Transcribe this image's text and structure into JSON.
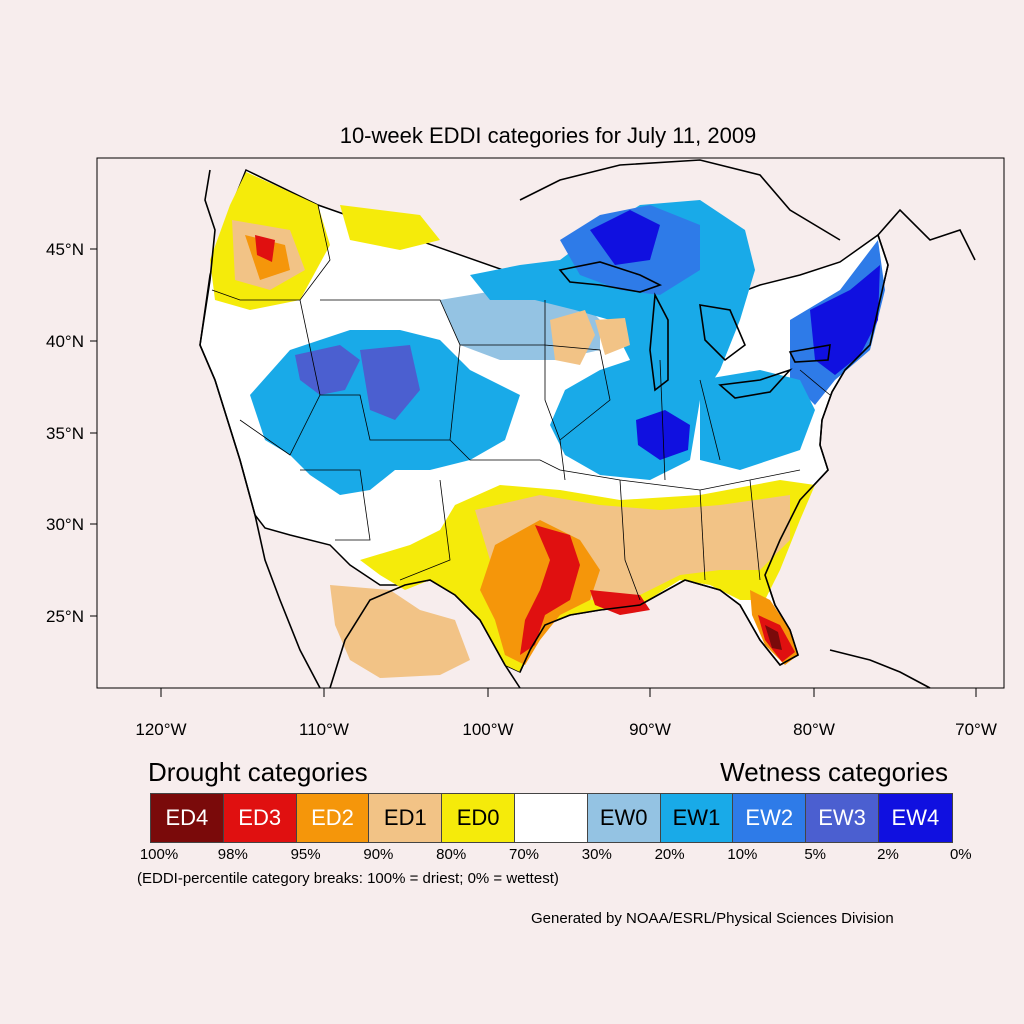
{
  "map": {
    "title": "10-week EDDI categories for July 11, 2009",
    "lat_labels": [
      "45°N",
      "40°N",
      "35°N",
      "30°N",
      "25°N"
    ],
    "lon_labels": [
      "120°W",
      "110°W",
      "100°W",
      "90°W",
      "80°W",
      "70°W"
    ]
  },
  "legend": {
    "drought_heading": "Drought categories",
    "wetness_heading": "Wetness categories",
    "categories": [
      {
        "label": "ED4",
        "color": "#7a0a0a",
        "text_color": "#ffffff"
      },
      {
        "label": "ED3",
        "color": "#e01010",
        "text_color": "#ffffff"
      },
      {
        "label": "ED2",
        "color": "#f5960a",
        "text_color": "#ffffff"
      },
      {
        "label": "ED1",
        "color": "#f2c386",
        "text_color": "#000000"
      },
      {
        "label": "ED0",
        "color": "#f5eb0a",
        "text_color": "#000000"
      },
      {
        "label": "",
        "color": "#ffffff",
        "text_color": "#000000"
      },
      {
        "label": "EW0",
        "color": "#94c3e3",
        "text_color": "#000000"
      },
      {
        "label": "EW1",
        "color": "#19aae8",
        "text_color": "#000000"
      },
      {
        "label": "EW2",
        "color": "#2e7be8",
        "text_color": "#ffffff"
      },
      {
        "label": "EW3",
        "color": "#4b5fd0",
        "text_color": "#ffffff"
      },
      {
        "label": "EW4",
        "color": "#1010e0",
        "text_color": "#ffffff"
      }
    ],
    "percentiles": [
      "100%",
      "98%",
      "95%",
      "90%",
      "80%",
      "70%",
      "30%",
      "20%",
      "10%",
      "5%",
      "2%",
      "0%"
    ],
    "note": "(EDDI-percentile category breaks: 100% = driest; 0% = wettest)"
  },
  "credit": "Generated by NOAA/ESRL/Physical Sciences Division"
}
